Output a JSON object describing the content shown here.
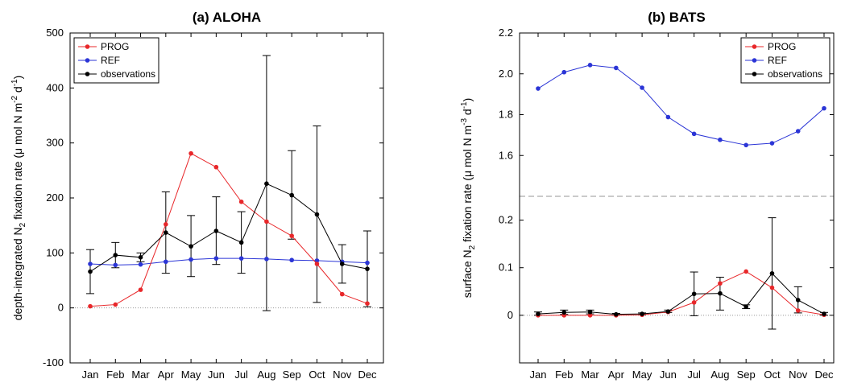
{
  "chart_data": [
    {
      "type": "line",
      "title": "(a) ALOHA",
      "ylabel": {
        "prefix": "depth-integrated",
        "n": "N",
        "sub2": "2",
        "mid": "fixation",
        "rate": "rate",
        "unit_open": "(μ mol N  m",
        "unit_exp1": "-2",
        "unit_d": " d",
        "unit_exp2": "-1",
        "unit_close": ")"
      },
      "categories": [
        "Jan",
        "Feb",
        "Mar",
        "Apr",
        "May",
        "Jun",
        "Jul",
        "Aug",
        "Sep",
        "Oct",
        "Nov",
        "Dec"
      ],
      "ylim": [
        -100,
        500
      ],
      "yticks": [
        "-100",
        "0",
        "100",
        "200",
        "300",
        "400",
        "500"
      ],
      "series": [
        {
          "name": "PROG",
          "color": "#e8272a",
          "values": [
            3,
            6,
            33,
            152,
            281,
            256,
            193,
            157,
            131,
            80,
            25,
            8
          ]
        },
        {
          "name": "REF",
          "color": "#2b35d6",
          "values": [
            80,
            78,
            79,
            84,
            88,
            90,
            90,
            89,
            87,
            86,
            84,
            82
          ]
        },
        {
          "name": "observations",
          "color": "#000000",
          "values": [
            66,
            96,
            92,
            137,
            112,
            140,
            119,
            226,
            205,
            170,
            80,
            71
          ],
          "err_low": [
            26,
            73,
            84,
            63,
            57,
            79,
            63,
            -5,
            125,
            10,
            45,
            2
          ],
          "err_high": [
            106,
            119,
            100,
            211,
            168,
            202,
            175,
            459,
            286,
            331,
            115,
            140
          ]
        }
      ],
      "legend": "top-left"
    },
    {
      "type": "line",
      "title": "(b) BATS",
      "ylabel": {
        "prefix": "surface",
        "n": "N",
        "sub2": "2",
        "mid": "fixation rate",
        "unit_open": "(μ mol N  m",
        "unit_exp1": "-3",
        "unit_d": " d",
        "unit_exp2": "-1",
        "unit_close": ")"
      },
      "categories": [
        "Jan",
        "Feb",
        "Mar",
        "Apr",
        "May",
        "Jun",
        "Jul",
        "Aug",
        "Sep",
        "Oct",
        "Nov",
        "Dec"
      ],
      "broken_axis": true,
      "upper_ylim": [
        1.4,
        2.2
      ],
      "upper_yticks": [
        "1.6",
        "1.8",
        "2.0",
        "2.2"
      ],
      "lower_ylim": [
        -0.1,
        0.25
      ],
      "lower_yticks": [
        "0",
        "0.1",
        "0.2"
      ],
      "series": [
        {
          "name": "PROG",
          "color": "#e8272a",
          "values": [
            0.0,
            0.0,
            0.0,
            0.0,
            0.001,
            0.007,
            0.027,
            0.067,
            0.092,
            0.058,
            0.01,
            0.001
          ]
        },
        {
          "name": "REF",
          "color": "#2b35d6",
          "values": [
            1.928,
            2.008,
            2.043,
            2.029,
            1.932,
            1.788,
            1.706,
            1.677,
            1.651,
            1.66,
            1.719,
            1.831
          ]
        },
        {
          "name": "observations",
          "color": "#000000",
          "values": [
            0.003,
            0.006,
            0.007,
            0.002,
            0.003,
            0.008,
            0.045,
            0.046,
            0.018,
            0.088,
            0.032,
            0.003
          ],
          "err_low": [
            0.0,
            0.002,
            0.003,
            0.0,
            0.001,
            0.006,
            -0.001,
            0.011,
            0.014,
            -0.029,
            0.005,
            0.0
          ],
          "err_high": [
            0.007,
            0.011,
            0.011,
            0.004,
            0.005,
            0.011,
            0.091,
            0.08,
            0.022,
            0.205,
            0.06,
            0.006
          ]
        }
      ],
      "legend": "top-right"
    }
  ]
}
